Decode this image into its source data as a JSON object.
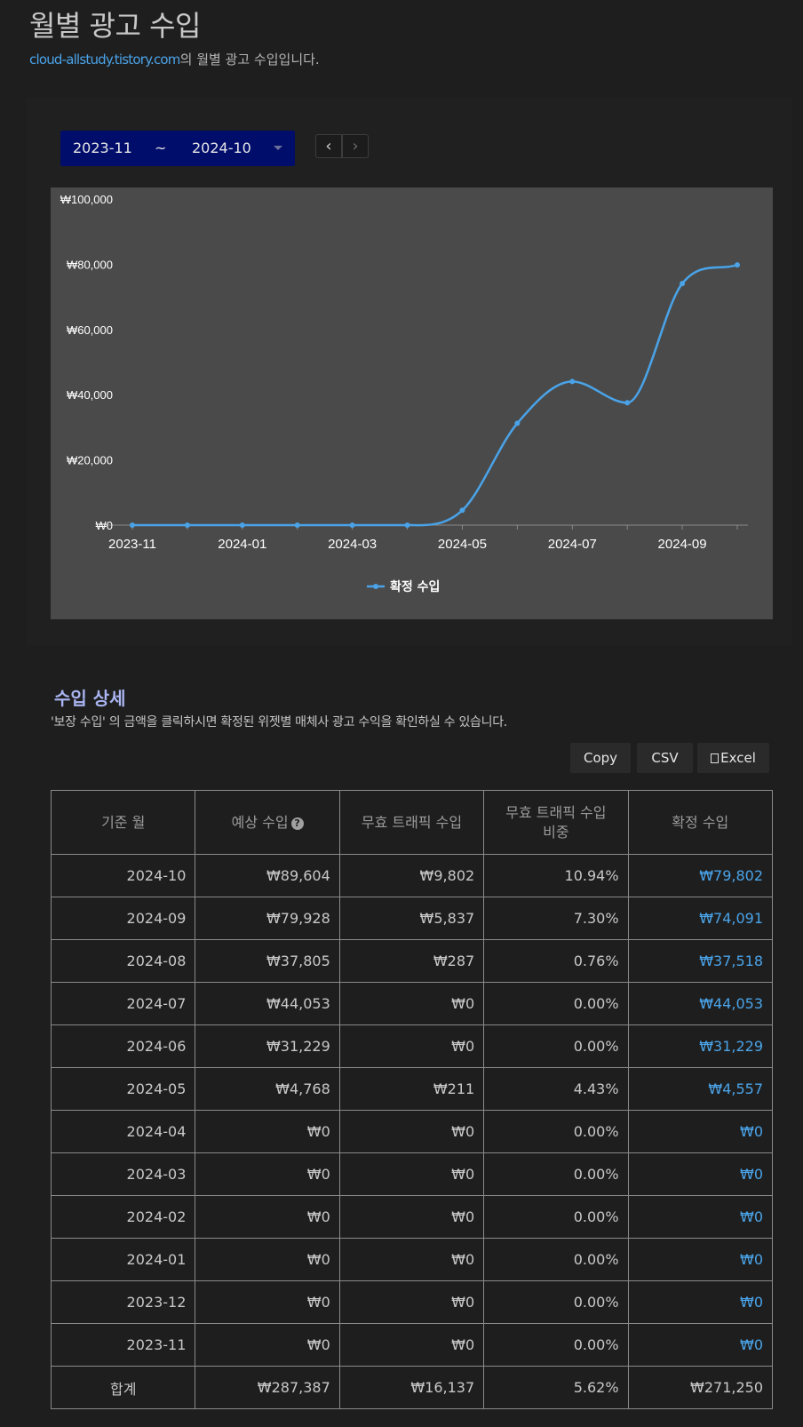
{
  "header": {
    "title": "월별 광고 수입",
    "site_link": "cloud-allstudy.tistory.com",
    "subtitle_suffix": "의 월별 광고 수입입니다."
  },
  "range": {
    "from": "2023-11",
    "separator": "~",
    "to": "2024-10",
    "prev_icon": "chevron-left-icon",
    "next_icon": "chevron-right-icon"
  },
  "chart_data": {
    "type": "line",
    "x": [
      "2023-11",
      "2023-12",
      "2024-01",
      "2024-02",
      "2024-03",
      "2024-04",
      "2024-05",
      "2024-06",
      "2024-07",
      "2024-08",
      "2024-09",
      "2024-10"
    ],
    "tick_labels": [
      "2023-11",
      "2024-01",
      "2024-03",
      "2024-05",
      "2024-07",
      "2024-09"
    ],
    "y_tick_labels": [
      "₩0",
      "₩20,000",
      "₩40,000",
      "₩60,000",
      "₩80,000",
      "₩100,000"
    ],
    "ylim": [
      0,
      100000
    ],
    "series": [
      {
        "name": "확정 수입",
        "color": "#4aa3e8",
        "values": [
          0,
          0,
          0,
          0,
          0,
          0,
          4557,
          31229,
          44053,
          37518,
          74091,
          79802
        ]
      }
    ],
    "legend": "bottom-center",
    "grid": false
  },
  "detail": {
    "title": "수입 상세",
    "description": "'보장 수입' 의 금액을 클릭하시면 확정된 위젯별 매체사 광고 수익을 확인하실 수 있습니다.",
    "buttons": {
      "copy": "Copy",
      "csv": "CSV",
      "excel": "Excel"
    },
    "columns": [
      "기준 월",
      "예상 수입",
      "무효 트래픽 수입",
      "무효 트래픽 수입\n비중",
      "확정 수입"
    ],
    "rows": [
      [
        "2024-10",
        "₩89,604",
        "₩9,802",
        "10.94%",
        "₩79,802"
      ],
      [
        "2024-09",
        "₩79,928",
        "₩5,837",
        "7.30%",
        "₩74,091"
      ],
      [
        "2024-08",
        "₩37,805",
        "₩287",
        "0.76%",
        "₩37,518"
      ],
      [
        "2024-07",
        "₩44,053",
        "₩0",
        "0.00%",
        "₩44,053"
      ],
      [
        "2024-06",
        "₩31,229",
        "₩0",
        "0.00%",
        "₩31,229"
      ],
      [
        "2024-05",
        "₩4,768",
        "₩211",
        "4.43%",
        "₩4,557"
      ],
      [
        "2024-04",
        "₩0",
        "₩0",
        "0.00%",
        "₩0"
      ],
      [
        "2024-03",
        "₩0",
        "₩0",
        "0.00%",
        "₩0"
      ],
      [
        "2024-02",
        "₩0",
        "₩0",
        "0.00%",
        "₩0"
      ],
      [
        "2024-01",
        "₩0",
        "₩0",
        "0.00%",
        "₩0"
      ],
      [
        "2023-12",
        "₩0",
        "₩0",
        "0.00%",
        "₩0"
      ],
      [
        "2023-11",
        "₩0",
        "₩0",
        "0.00%",
        "₩0"
      ]
    ],
    "total": [
      "합계",
      "₩287,387",
      "₩16,137",
      "5.62%",
      "₩271,250"
    ]
  }
}
